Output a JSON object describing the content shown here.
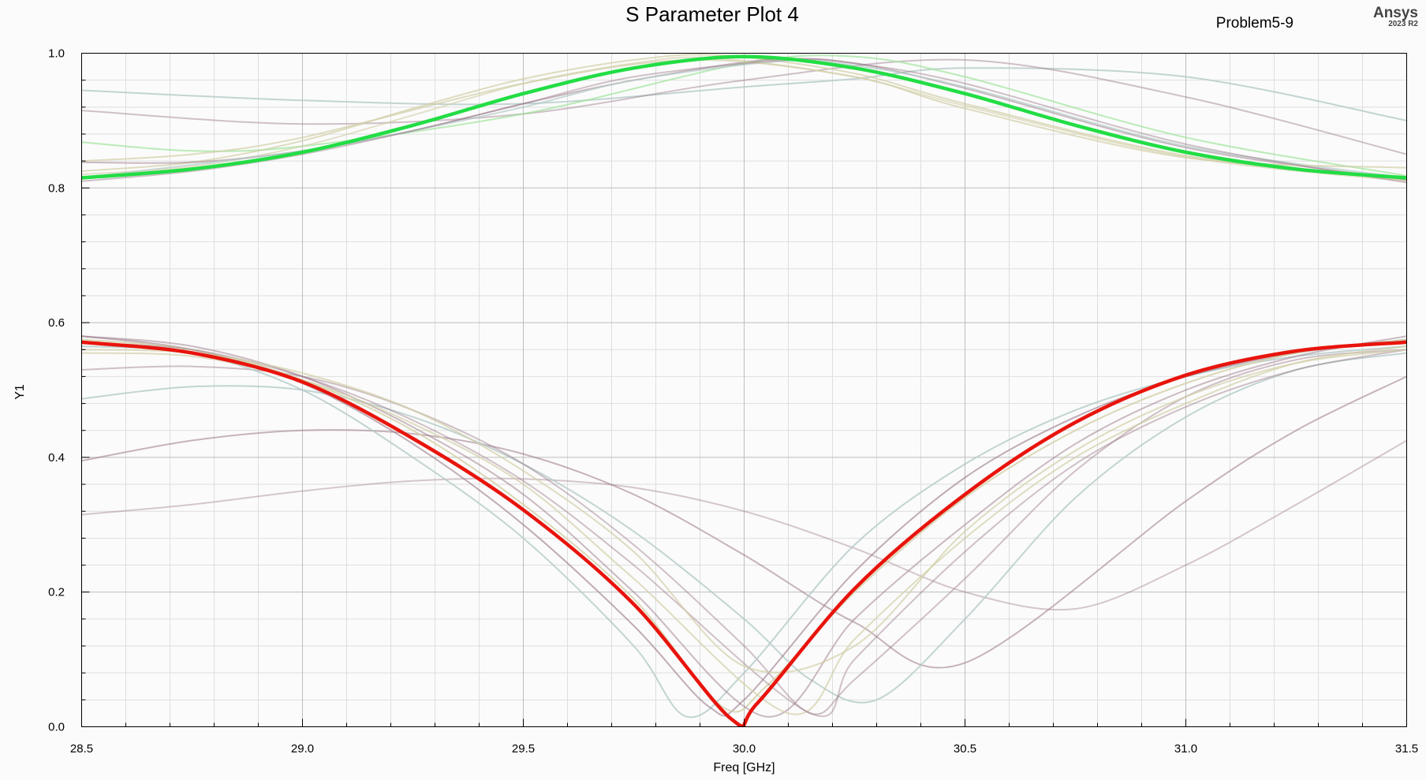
{
  "header": {
    "title": "S Parameter Plot 4",
    "project": "Problem5-9",
    "brand": "Ansys",
    "version": "2023 R2"
  },
  "chart_data": {
    "type": "line",
    "title": "S Parameter Plot 4",
    "xlabel": "Freq [GHz]",
    "ylabel": "Y1",
    "xlim": [
      28.5,
      31.5
    ],
    "ylim": [
      0.0,
      1.0
    ],
    "x_ticks": [
      "28.5",
      "29.0",
      "29.5",
      "30.0",
      "30.5",
      "31.0",
      "31.5"
    ],
    "y_ticks": [
      "0.0",
      "0.2",
      "0.4",
      "0.6",
      "0.8",
      "1.0"
    ],
    "grid": true,
    "colors": {
      "highlight_transmission": "#22dd44",
      "highlight_reflection": "#e8140c",
      "sweep_mauve": "#9a7888",
      "sweep_teal": "#b4cbc8",
      "sweep_tan": "#d2cfa6",
      "sweep_green": "#9ee49a"
    },
    "series": [
      {
        "color": "#22dd44",
        "width": 4.5,
        "opacity": 1,
        "x": [
          28.5,
          28.75,
          29.0,
          29.25,
          29.5,
          29.75,
          30.0,
          30.25,
          30.5,
          30.75,
          31.0,
          31.25,
          31.5
        ],
        "y": [
          0.815,
          0.828,
          0.853,
          0.893,
          0.94,
          0.978,
          0.995,
          0.978,
          0.94,
          0.893,
          0.853,
          0.828,
          0.815
        ]
      },
      {
        "color": "#e8140c",
        "width": 4.5,
        "opacity": 1,
        "x": [
          28.5,
          28.75,
          29.0,
          29.25,
          29.5,
          29.75,
          29.97,
          30.03,
          30.25,
          30.5,
          30.75,
          31.0,
          31.25,
          31.5
        ],
        "y": [
          0.571,
          0.555,
          0.512,
          0.428,
          0.322,
          0.182,
          0.012,
          0.035,
          0.205,
          0.345,
          0.452,
          0.522,
          0.558,
          0.571
        ]
      },
      {
        "color": "#b4cbc8",
        "width": 2,
        "opacity": 0.8,
        "x": [
          28.5,
          29.0,
          29.5,
          30.0,
          30.25,
          30.5,
          31.0,
          31.5
        ],
        "y": [
          0.945,
          0.93,
          0.925,
          0.95,
          0.962,
          0.978,
          0.965,
          0.9
        ]
      },
      {
        "color": "#9a7888",
        "width": 2,
        "opacity": 0.45,
        "x": [
          28.5,
          29.0,
          29.5,
          30.0,
          30.5,
          31.0,
          31.5
        ],
        "y": [
          0.915,
          0.895,
          0.91,
          0.96,
          0.99,
          0.935,
          0.85
        ]
      },
      {
        "color": "#9ee49a",
        "width": 2,
        "opacity": 0.7,
        "x": [
          28.5,
          28.75,
          29.0,
          29.5,
          30.0,
          30.25,
          30.5,
          31.0,
          31.5
        ],
        "y": [
          0.868,
          0.855,
          0.862,
          0.91,
          0.985,
          0.995,
          0.965,
          0.875,
          0.818
        ]
      },
      {
        "color": "#d2cfa6",
        "width": 2,
        "opacity": 0.7,
        "x": [
          28.5,
          28.75,
          29.0,
          29.25,
          29.5,
          29.75,
          29.95,
          30.25,
          30.5,
          31.0,
          31.5
        ],
        "y": [
          0.825,
          0.838,
          0.87,
          0.918,
          0.962,
          0.99,
          0.997,
          0.97,
          0.925,
          0.848,
          0.812
        ]
      },
      {
        "color": "#d2cfa6",
        "width": 2,
        "opacity": 0.6,
        "x": [
          28.5,
          28.75,
          29.0,
          29.25,
          29.5,
          29.75,
          29.93,
          30.25,
          30.5,
          31.0,
          31.5
        ],
        "y": [
          0.82,
          0.832,
          0.862,
          0.908,
          0.955,
          0.985,
          0.993,
          0.965,
          0.922,
          0.846,
          0.81
        ]
      },
      {
        "color": "#9a7888",
        "width": 2,
        "opacity": 0.5,
        "x": [
          28.5,
          28.75,
          29.0,
          29.25,
          29.5,
          29.75,
          30.05,
          30.25,
          30.5,
          31.0,
          31.5
        ],
        "y": [
          0.838,
          0.838,
          0.855,
          0.885,
          0.925,
          0.96,
          0.99,
          0.985,
          0.948,
          0.86,
          0.812
        ]
      },
      {
        "color": "#b4cbc8",
        "width": 2,
        "opacity": 0.7,
        "x": [
          28.5,
          29.0,
          29.25,
          29.5,
          29.75,
          30.08,
          30.25,
          30.5,
          31.0,
          31.5
        ],
        "y": [
          0.815,
          0.855,
          0.885,
          0.92,
          0.96,
          0.988,
          0.982,
          0.95,
          0.862,
          0.815
        ]
      },
      {
        "color": "#d2cfa6",
        "width": 2,
        "opacity": 0.7,
        "x": [
          28.5,
          28.75,
          29.0,
          29.5,
          29.88,
          30.25,
          30.5,
          31.0,
          31.5
        ],
        "y": [
          0.84,
          0.85,
          0.875,
          0.955,
          0.99,
          0.965,
          0.918,
          0.845,
          0.83
        ]
      },
      {
        "color": "#9a7888",
        "width": 2,
        "opacity": 0.45,
        "x": [
          28.5,
          28.75,
          29.0,
          29.25,
          29.5,
          29.75,
          30.1,
          30.25,
          30.5,
          31.0,
          31.5
        ],
        "y": [
          0.81,
          0.825,
          0.85,
          0.885,
          0.925,
          0.965,
          0.99,
          0.985,
          0.955,
          0.865,
          0.808
        ]
      },
      {
        "color": "#9a7888",
        "width": 2,
        "opacity": 0.55,
        "x": [
          28.5,
          28.75,
          29.0,
          29.25,
          29.5,
          29.75,
          30.0,
          30.25,
          30.5,
          31.0,
          31.25,
          31.5
        ],
        "y": [
          0.395,
          0.425,
          0.44,
          0.435,
          0.405,
          0.345,
          0.255,
          0.155,
          0.095,
          0.335,
          0.44,
          0.52
        ]
      },
      {
        "color": "#9a7888",
        "width": 2,
        "opacity": 0.4,
        "x": [
          28.5,
          28.75,
          29.0,
          29.25,
          29.5,
          29.75,
          30.0,
          30.25,
          30.5,
          30.75,
          31.0,
          31.25,
          31.5
        ],
        "y": [
          0.315,
          0.33,
          0.35,
          0.365,
          0.368,
          0.355,
          0.32,
          0.265,
          0.2,
          0.175,
          0.24,
          0.33,
          0.425
        ]
      },
      {
        "color": "#b4cbc8",
        "width": 2,
        "opacity": 0.8,
        "x": [
          28.5,
          28.75,
          29.0,
          29.25,
          29.5,
          29.75,
          30.0,
          30.15,
          30.3,
          30.5,
          30.75,
          31.0,
          31.25,
          31.5
        ],
        "y": [
          0.487,
          0.505,
          0.5,
          0.46,
          0.39,
          0.29,
          0.16,
          0.07,
          0.04,
          0.16,
          0.34,
          0.46,
          0.53,
          0.555
        ]
      },
      {
        "color": "#9a7888",
        "width": 2,
        "opacity": 0.45,
        "x": [
          28.5,
          28.75,
          29.0,
          29.25,
          29.5,
          29.75,
          30.0,
          30.15,
          30.25,
          30.5,
          30.75,
          31.0,
          31.25,
          31.5
        ],
        "y": [
          0.53,
          0.535,
          0.52,
          0.47,
          0.39,
          0.27,
          0.12,
          0.02,
          0.07,
          0.22,
          0.38,
          0.49,
          0.545,
          0.56
        ]
      },
      {
        "color": "#b4cbc8",
        "width": 2,
        "opacity": 0.8,
        "x": [
          28.5,
          28.75,
          29.0,
          29.25,
          29.5,
          29.75,
          29.87,
          30.0,
          30.25,
          30.5,
          30.75,
          31.0,
          31.25,
          31.5
        ],
        "y": [
          0.565,
          0.555,
          0.5,
          0.4,
          0.28,
          0.12,
          0.015,
          0.08,
          0.27,
          0.39,
          0.47,
          0.52,
          0.55,
          0.565
        ]
      },
      {
        "color": "#9a7888",
        "width": 2,
        "opacity": 0.6,
        "x": [
          28.5,
          28.75,
          29.0,
          29.25,
          29.5,
          29.75,
          29.92,
          30.0,
          30.25,
          30.5,
          30.75,
          31.0,
          31.25,
          31.5
        ],
        "y": [
          0.58,
          0.56,
          0.51,
          0.42,
          0.3,
          0.15,
          0.03,
          0.04,
          0.23,
          0.37,
          0.46,
          0.52,
          0.555,
          0.575
        ]
      },
      {
        "color": "#d2cfa6",
        "width": 2,
        "opacity": 0.8,
        "x": [
          28.5,
          28.75,
          29.0,
          29.25,
          29.5,
          29.75,
          29.95,
          30.05,
          30.25,
          30.5,
          30.75,
          31.0,
          31.25,
          31.5
        ],
        "y": [
          0.575,
          0.56,
          0.515,
          0.44,
          0.33,
          0.19,
          0.03,
          0.06,
          0.2,
          0.34,
          0.44,
          0.51,
          0.555,
          0.575
        ]
      },
      {
        "color": "#9a7888",
        "width": 2,
        "opacity": 0.5,
        "x": [
          28.5,
          28.75,
          29.0,
          29.25,
          29.5,
          29.75,
          30.05,
          30.25,
          30.5,
          30.75,
          31.0,
          31.25,
          31.5
        ],
        "y": [
          0.58,
          0.565,
          0.52,
          0.445,
          0.345,
          0.2,
          0.015,
          0.16,
          0.3,
          0.42,
          0.5,
          0.55,
          0.58
        ]
      },
      {
        "color": "#d2cfa6",
        "width": 2,
        "opacity": 0.7,
        "x": [
          28.5,
          28.75,
          29.0,
          29.25,
          29.5,
          29.75,
          30.1,
          30.25,
          30.5,
          30.75,
          31.0,
          31.25,
          31.5
        ],
        "y": [
          0.555,
          0.55,
          0.515,
          0.45,
          0.36,
          0.22,
          0.02,
          0.13,
          0.28,
          0.4,
          0.48,
          0.54,
          0.565
        ]
      },
      {
        "color": "#9a7888",
        "width": 2,
        "opacity": 0.45,
        "x": [
          28.5,
          28.75,
          29.0,
          29.25,
          29.5,
          29.75,
          30.15,
          30.25,
          30.5,
          30.75,
          31.0,
          31.25,
          31.5
        ],
        "y": [
          0.57,
          0.56,
          0.52,
          0.455,
          0.365,
          0.24,
          0.02,
          0.1,
          0.26,
          0.39,
          0.475,
          0.53,
          0.56
        ]
      },
      {
        "color": "#d2cfa6",
        "width": 2,
        "opacity": 0.7,
        "x": [
          28.5,
          28.75,
          29.0,
          29.25,
          29.5,
          29.75,
          30.0,
          30.25,
          30.5,
          30.75,
          31.0,
          31.25,
          31.5
        ],
        "y": [
          0.56,
          0.555,
          0.525,
          0.47,
          0.38,
          0.26,
          0.09,
          0.12,
          0.29,
          0.41,
          0.49,
          0.54,
          0.56
        ]
      }
    ]
  }
}
